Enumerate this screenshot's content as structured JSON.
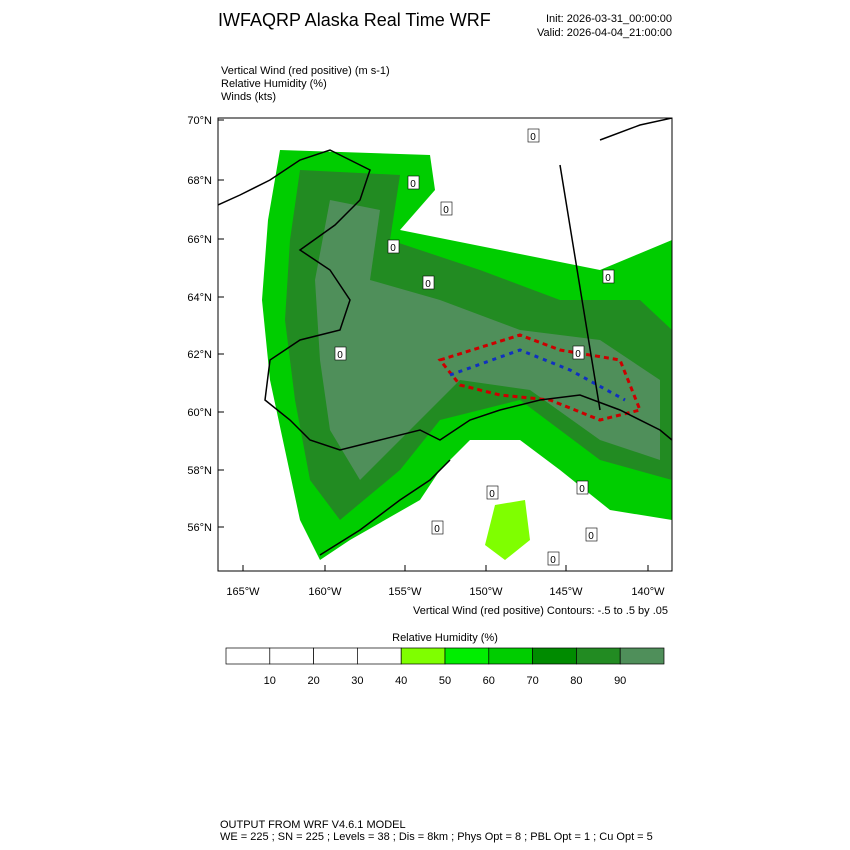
{
  "title": "IWFAQRP Alaska Real Time WRF",
  "init": "Init: 2026-03-31_00:00:00",
  "valid": "Valid: 2026-04-04_21:00:00",
  "fields": [
    "Vertical Wind (red positive)   (m s-1)",
    "Relative Humidity   (%)",
    "Winds   (kts)"
  ],
  "lat_labels": [
    "70°N",
    "68°N",
    "66°N",
    "64°N",
    "62°N",
    "60°N",
    "58°N",
    "56°N"
  ],
  "lon_labels": [
    "165°W",
    "160°W",
    "155°W",
    "150°W",
    "145°W",
    "140°W"
  ],
  "contour_labels": [
    "0",
    "0",
    "0",
    "0",
    "0",
    "0",
    "0",
    "0",
    "0",
    "0",
    "0",
    "0",
    "0"
  ],
  "contour_note": "Vertical Wind (red positive) Contours: -.5 to .5 by .05",
  "colorbar": {
    "title": "Relative Humidity  (%)",
    "labels": [
      "10",
      "20",
      "30",
      "40",
      "50",
      "60",
      "70",
      "80",
      "90"
    ],
    "colors": [
      "#ffffff",
      "#ffffff",
      "#ffffff",
      "#ffffff",
      "#7fff00",
      "#00ee00",
      "#00cd00",
      "#008b00",
      "#228b22",
      "#4f8f5a"
    ]
  },
  "footer": [
    "OUTPUT FROM WRF V4.6.1 MODEL",
    "WE = 225 ; SN = 225 ; Levels = 38 ; Dis = 8km ; Phys Opt = 8 ; PBL Opt = 1 ; Cu Opt = 5"
  ]
}
